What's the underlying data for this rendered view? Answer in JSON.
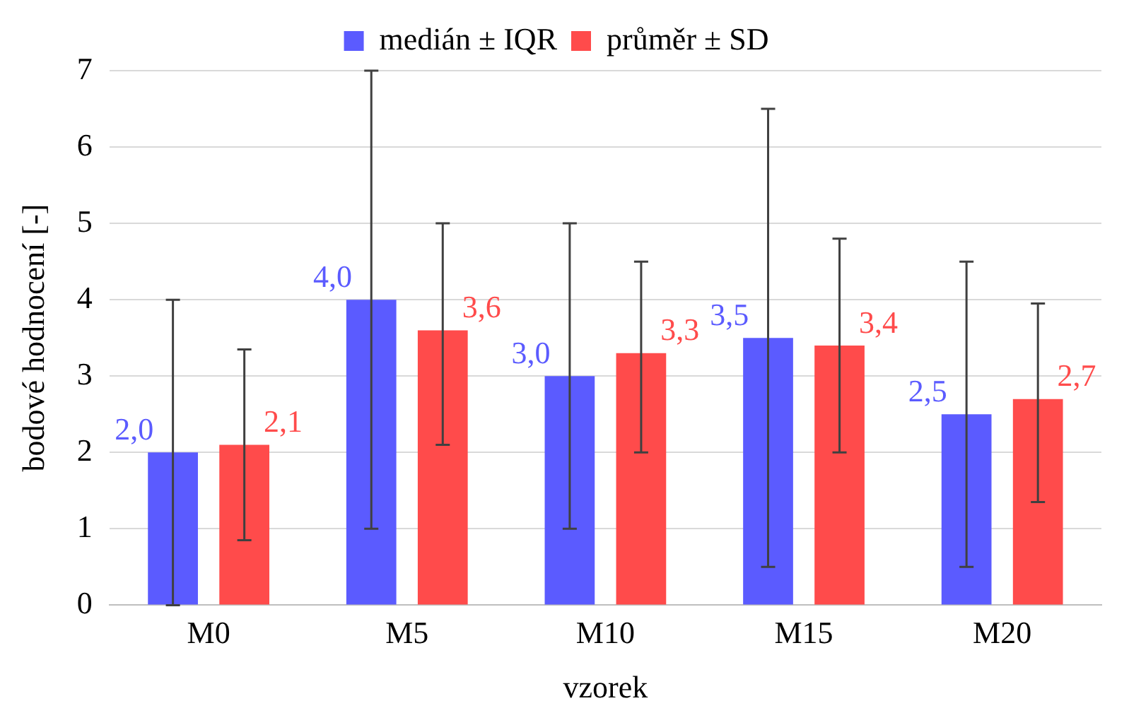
{
  "chart_data": {
    "type": "bar",
    "xlabel": "vzorek",
    "ylabel": "bodové hodnocení [-]",
    "categories": [
      "M0",
      "M5",
      "M10",
      "M15",
      "M20"
    ],
    "series": [
      {
        "name": "medián ± IQR",
        "color": "#5b5bff",
        "values": [
          2.0,
          4.0,
          3.0,
          3.5,
          2.5
        ],
        "value_labels": [
          "2,0",
          "4,0",
          "3,0",
          "3,5",
          "2,5"
        ],
        "errors": [
          [
            0,
            4
          ],
          [
            1,
            7
          ],
          [
            1,
            5
          ],
          [
            0.5,
            6.5
          ],
          [
            0.5,
            4.5
          ]
        ]
      },
      {
        "name": "průměr ± SD",
        "color": "#ff4b4b",
        "values": [
          2.1,
          3.6,
          3.3,
          3.4,
          2.7
        ],
        "value_labels": [
          "2,1",
          "3,6",
          "3,3",
          "3,4",
          "2,7"
        ],
        "errors": [
          [
            0.85,
            3.35
          ],
          [
            2.1,
            5.0
          ],
          [
            2.0,
            4.5
          ],
          [
            2.0,
            4.8
          ],
          [
            1.35,
            3.95
          ]
        ]
      }
    ],
    "ylim": [
      0,
      7
    ],
    "yticks": [
      0,
      1,
      2,
      3,
      4,
      5,
      6,
      7
    ],
    "grid": "y",
    "legend": "top"
  }
}
